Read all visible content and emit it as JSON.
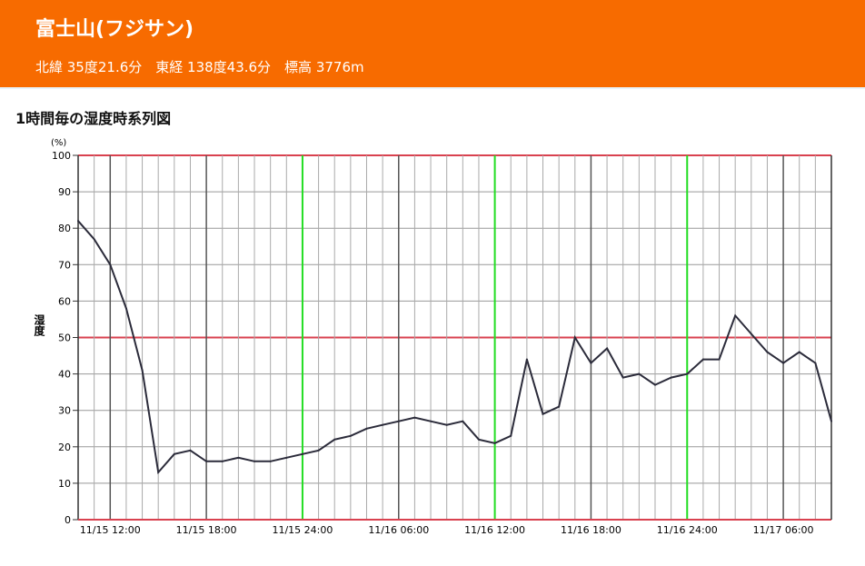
{
  "header": {
    "title": "富士山(フジサン)",
    "location": "北緯 35度21.6分　東経 138度43.6分　標高 3776m"
  },
  "section_title": "1時間毎の湿度時系列図",
  "chart_data": {
    "type": "line",
    "title": "1時間毎の湿度時系列図",
    "ylabel": "湿度",
    "yunit": "(%)",
    "ylim": [
      0,
      100
    ],
    "yticks": [
      0,
      10,
      20,
      30,
      40,
      50,
      60,
      70,
      80,
      90,
      100
    ],
    "xstart": "11/15 10:00",
    "xend": "11/17 09:00",
    "xtick_labels": [
      "11/15 12:00",
      "11/15 18:00",
      "11/15 24:00",
      "11/16 06:00",
      "11/16 12:00",
      "11/16 18:00",
      "11/16 24:00",
      "11/17 06:00"
    ],
    "reference_lines": [
      50,
      100
    ],
    "grid": true,
    "colors": {
      "line": "#2b2b3a",
      "reference": "#d9414f",
      "day_line": "#22dd22",
      "six_hour_line": "#555555",
      "hour_line": "#aaaaaa"
    },
    "series": [
      {
        "values": [
          82,
          77,
          70,
          58,
          41,
          13,
          18,
          19,
          16,
          16,
          17,
          16,
          16,
          17,
          18,
          19,
          22,
          23,
          25,
          26,
          27,
          28,
          27,
          26,
          27,
          22,
          21,
          23,
          44,
          29,
          31,
          50,
          43,
          47,
          39,
          40,
          37,
          39,
          40,
          44,
          44,
          56,
          51,
          46,
          43,
          46,
          43,
          27
        ]
      }
    ]
  }
}
